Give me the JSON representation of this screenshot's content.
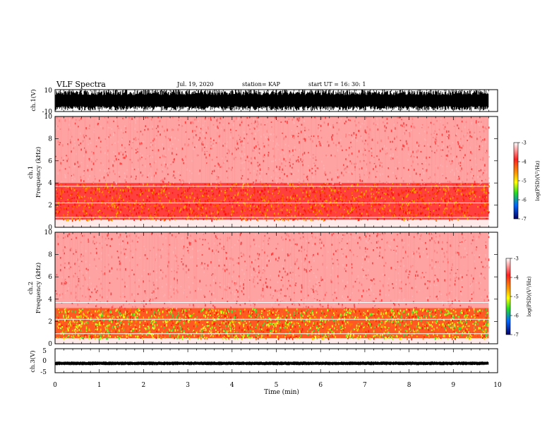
{
  "header": {
    "title": "VLF Spectra",
    "date": "Jul. 19, 2020",
    "station": "station= KAP",
    "start": "start  UT =  16: 30: 1"
  },
  "chart_data": [
    {
      "type": "line",
      "name": "ch1-waveform",
      "ylabel": "ch.1(V)",
      "ylim": [
        -10,
        10
      ],
      "yticks": [
        "10",
        "-10"
      ],
      "xlim": [
        0,
        10
      ],
      "color": "#000000",
      "amplitude_range": [
        -9,
        10
      ]
    },
    {
      "type": "heatmap",
      "name": "ch1-spectrogram",
      "ylabel_channel": "ch.1",
      "ylabel": "Frequency  (kHz)",
      "ylim": [
        0,
        10
      ],
      "yticks": [
        "0",
        "2",
        "4",
        "6",
        "8",
        "10"
      ],
      "xlim": [
        0,
        9.8
      ],
      "colorbar": {
        "label": "log(PSD)(V²/Hz)",
        "ticks": [
          "-3",
          "-4",
          "-5",
          "-6",
          "-7"
        ],
        "range": [
          -7,
          -3
        ]
      },
      "bands": [
        {
          "f_min": 0.7,
          "f_max": 4.0,
          "level": -3.7
        },
        {
          "f_min": 4.0,
          "f_max": 10.0,
          "level": -3.3
        }
      ]
    },
    {
      "type": "heatmap",
      "name": "ch2-spectrogram",
      "ylabel_channel": "ch.2",
      "ylabel": "Frequency  (kHz)",
      "ylim": [
        0,
        10
      ],
      "yticks": [
        "0",
        "2",
        "4",
        "6",
        "8",
        "10"
      ],
      "xlim": [
        0,
        9.8
      ],
      "colorbar": {
        "label": "log(PSD)(V²/Hz)",
        "ticks": [
          "-3",
          "-4",
          "-5",
          "-6",
          "-7"
        ],
        "range": [
          -7,
          -3
        ]
      },
      "bands": [
        {
          "f_min": 0.5,
          "f_max": 3.2,
          "level": -4.6
        },
        {
          "f_min": 3.2,
          "f_max": 10.0,
          "level": -3.3
        }
      ]
    },
    {
      "type": "line",
      "name": "ch3-waveform",
      "ylabel": "ch.3(V)",
      "ylim": [
        -5,
        5
      ],
      "yticks": [
        "5",
        "0",
        "-5"
      ],
      "xlim": [
        0,
        9.8
      ],
      "color": "#000000",
      "amplitude_range": [
        -1.6,
        -0.6
      ]
    }
  ],
  "xaxis": {
    "label": "Time  (min)",
    "ticks": [
      "0",
      "1",
      "2",
      "3",
      "4",
      "5",
      "6",
      "7",
      "8",
      "9",
      "10"
    ],
    "range": [
      0,
      10
    ]
  }
}
